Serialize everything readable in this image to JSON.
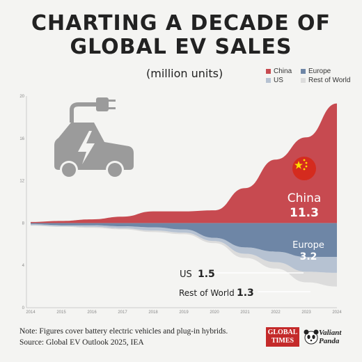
{
  "title_line1": "CHARTING A DECADE OF",
  "title_line2": "GLOBAL EV SALES",
  "subtitle": "(million units)",
  "legend": [
    {
      "label": "China",
      "color": "#c74a50"
    },
    {
      "label": "Europe",
      "color": "#6e86a6"
    },
    {
      "label": "US",
      "color": "#b6c2d2"
    },
    {
      "label": "Rest of World",
      "color": "#dcdcdc"
    }
  ],
  "icon": "electric-car-plug-icon",
  "annotations": {
    "china_label": "China",
    "china_value": "11.3",
    "europe_label": "Europe",
    "europe_value": "3.2",
    "us_label": "US",
    "us_value": "1.5",
    "row_label": "Rest of World",
    "row_value": "1.3"
  },
  "note_line1": "Note: Figures cover battery electric vehicles and plug-in hybrids.",
  "note_line2": "Source: Global EV Outlook 2025, IEA",
  "logos": {
    "global_times": "GLOBAL TIMES",
    "valiant_panda_line1": "Valiant",
    "valiant_panda_line2": "Panda"
  },
  "chart_data": {
    "type": "area",
    "stacked": true,
    "layout": "streamgraph-centered",
    "x": [
      "2014",
      "2015",
      "2016",
      "2017",
      "2018",
      "2019",
      "2020",
      "2021",
      "2022",
      "2023",
      "2024"
    ],
    "series": [
      {
        "name": "China",
        "color": "#c74a50",
        "values": [
          0.1,
          0.2,
          0.35,
          0.6,
          1.1,
          1.1,
          1.2,
          3.3,
          6.0,
          8.1,
          11.3
        ]
      },
      {
        "name": "Europe",
        "color": "#6e86a6",
        "values": [
          0.1,
          0.2,
          0.2,
          0.3,
          0.4,
          0.6,
          1.4,
          2.3,
          2.7,
          3.2,
          3.2
        ]
      },
      {
        "name": "US",
        "color": "#b6c2d2",
        "values": [
          0.1,
          0.1,
          0.15,
          0.2,
          0.3,
          0.3,
          0.3,
          0.6,
          1.0,
          1.4,
          1.5
        ]
      },
      {
        "name": "Rest of World",
        "color": "#dcdcdc",
        "values": [
          0.05,
          0.05,
          0.1,
          0.1,
          0.15,
          0.15,
          0.2,
          0.4,
          0.6,
          1.0,
          1.3
        ]
      }
    ],
    "ylim": [
      0,
      20
    ],
    "yticks": [
      "0",
      "4",
      "8",
      "12",
      "16",
      "20"
    ],
    "grid": false,
    "legend_position": "top-right"
  }
}
